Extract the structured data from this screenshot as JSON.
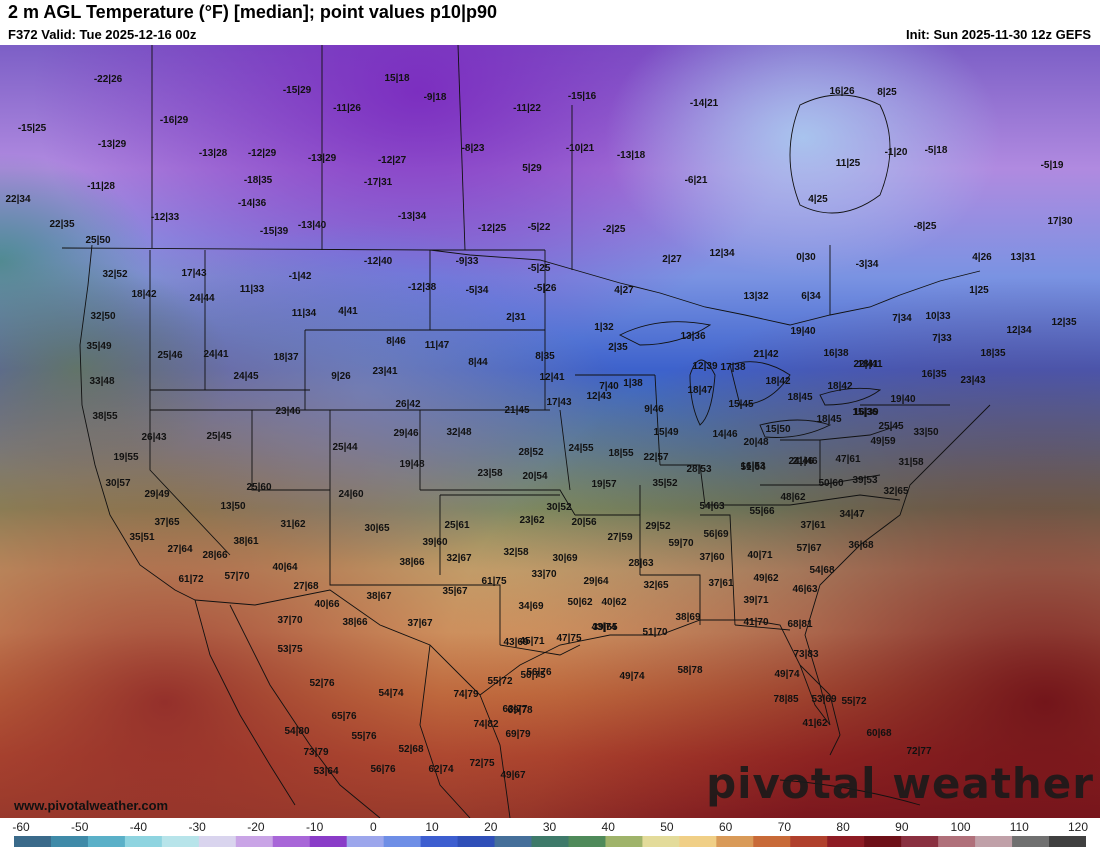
{
  "header": {
    "title": "2 m AGL Temperature (°F) [median]; point values p10|p90",
    "valid": "F372 Valid: Tue 2025-12-16 00z",
    "init": "Init: Sun 2025-11-30 12z GEFS"
  },
  "watermark": "pivotal weather",
  "url": "www.pivotalweather.com",
  "colorbar": {
    "ticks": [
      "-60",
      "-50",
      "-40",
      "-30",
      "-20",
      "-10",
      "0",
      "10",
      "20",
      "30",
      "40",
      "50",
      "60",
      "70",
      "80",
      "90",
      "100",
      "110",
      "120"
    ],
    "colors": [
      "#3a6a8a",
      "#3f8aa8",
      "#5ab0c8",
      "#8ed4e0",
      "#b7e4ea",
      "#d9d4ee",
      "#c9a4e6",
      "#a866d8",
      "#8a3cc8",
      "#9ca6ec",
      "#6e8ee6",
      "#3d5ed0",
      "#2f4fb8",
      "#456f9a",
      "#3e7a6a",
      "#4f8a5a",
      "#9fb36a",
      "#e3db9a",
      "#f0cf86",
      "#d99a58",
      "#c86a38",
      "#b0402c",
      "#8e1c24",
      "#6e1018",
      "#8a3040",
      "#b0707a",
      "#c0a0a8",
      "#707070",
      "#404040"
    ]
  },
  "points": [
    "-22|26",
    "-15|29",
    "15|18",
    "-9|18",
    "-15|16",
    "-14|21",
    "16|26",
    "8|25",
    "-15|25",
    "-16|29",
    "-11|26",
    "-11|22",
    "-13|29",
    "-13|28",
    "-12|29",
    "-13|29",
    "-12|27",
    "-8|23",
    "-10|21",
    "-13|18",
    "-1|20",
    "-5|18",
    "11|25",
    "-11|28",
    "-18|35",
    "-17|31",
    "5|29",
    "-6|21",
    "-5|19",
    "22|34",
    "-14|36",
    "-12|33",
    "-13|34",
    "4|25",
    "22|35",
    "-15|39",
    "-13|40",
    "-12|25",
    "-5|22",
    "-2|25",
    "-8|25",
    "17|30",
    "25|50",
    "-12|40",
    "-9|33",
    "2|27",
    "12|34",
    "0|30",
    "-3|34",
    "4|26",
    "13|31",
    "17|43",
    "-1|42",
    "-5|25",
    "32|52",
    "11|33",
    "-12|38",
    "-5|34",
    "-5|26",
    "4|27",
    "13|32",
    "6|34",
    "1|25",
    "18|42",
    "24|44",
    "32|50",
    "11|34",
    "4|41",
    "2|31",
    "1|32",
    "7|34",
    "10|33",
    "12|34",
    "12|35",
    "35|49",
    "8|46",
    "11|47",
    "2|35",
    "13|36",
    "19|40",
    "7|33",
    "25|46",
    "24|41",
    "18|37",
    "8|35",
    "21|42",
    "16|38",
    "22|41",
    "18|35",
    "9|26",
    "23|41",
    "8|44",
    "12|39",
    "17|38",
    "18|41",
    "33|48",
    "24|45",
    "12|41",
    "7|40",
    "1|38",
    "18|42",
    "18|42",
    "16|35",
    "23|43",
    "38|55",
    "23|46",
    "26|42",
    "21|45",
    "17|43",
    "12|43",
    "18|47",
    "18|45",
    "15|36",
    "19|40",
    "9|46",
    "15|45",
    "16|39",
    "15|50",
    "26|43",
    "25|45",
    "29|46",
    "32|48",
    "15|49",
    "14|46",
    "18|45",
    "25|45",
    "25|44",
    "28|52",
    "24|55",
    "18|55",
    "22|57",
    "16|53",
    "20|48",
    "24|46",
    "49|59",
    "33|50",
    "19|55",
    "19|48",
    "21|46",
    "47|61",
    "31|58",
    "30|57",
    "23|58",
    "20|54",
    "28|53",
    "51|64",
    "39|53",
    "29|49",
    "25|60",
    "24|60",
    "19|57",
    "35|52",
    "50|60",
    "32|65",
    "13|50",
    "30|52",
    "48|62",
    "34|47",
    "37|65",
    "31|62",
    "23|62",
    "20|56",
    "54|63",
    "55|66",
    "35|51",
    "38|61",
    "30|65",
    "25|61",
    "29|52",
    "56|69",
    "37|61",
    "27|64",
    "39|60",
    "59|70",
    "36|68",
    "28|66",
    "32|58",
    "27|59",
    "57|67",
    "61|72",
    "57|70",
    "40|64",
    "38|66",
    "32|67",
    "30|69",
    "28|63",
    "37|60",
    "40|71",
    "54|68",
    "33|70",
    "27|68",
    "29|64",
    "32|65",
    "37|61",
    "49|62",
    "46|63",
    "40|66",
    "38|67",
    "35|67",
    "61|75",
    "39|71",
    "37|70",
    "34|69",
    "50|62",
    "40|62",
    "38|66",
    "37|67",
    "39|65",
    "38|69",
    "41|70",
    "68|81",
    "43|74",
    "51|70",
    "47|75",
    "45|71",
    "43|69",
    "73|83",
    "53|75",
    "52|76",
    "56|76",
    "49|74",
    "58|78",
    "49|74",
    "55|72",
    "50|75",
    "53|69",
    "74|79",
    "54|74",
    "65|76",
    "63|77",
    "55|72",
    "41|62",
    "78|85",
    "74|82",
    "54|80",
    "55|76",
    "69|78",
    "69|79",
    "60|68",
    "73|79",
    "52|68",
    "72|77",
    "72|75",
    "53|64",
    "56|76",
    "62|74",
    "49|67"
  ]
}
